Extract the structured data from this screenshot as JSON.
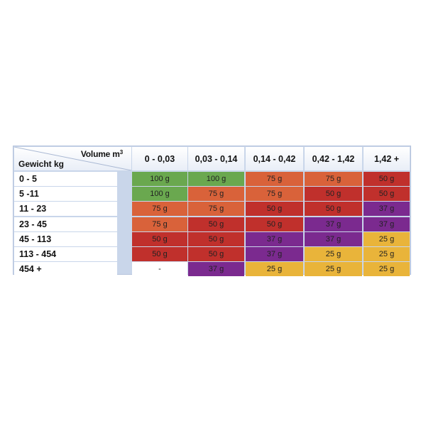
{
  "chart_data": {
    "type": "table",
    "corner": {
      "col_label": "Volume m",
      "col_label_sup": "3",
      "row_label": "Gewicht kg"
    },
    "columns": [
      "0 - 0,03",
      "0,03 - 0,14",
      "0,14 - 0,42",
      "0,42 - 1,42",
      "1,42 +"
    ],
    "rows": [
      "0 - 5",
      "5 -11",
      "11 - 23",
      "23 - 45",
      "45 - 113",
      "113 - 454",
      "454 +"
    ],
    "values": [
      [
        "100 g",
        "100 g",
        "75 g",
        "75 g",
        "50 g"
      ],
      [
        "100 g",
        "75 g",
        "75 g",
        "50 g",
        "50 g"
      ],
      [
        "75 g",
        "75 g",
        "50 g",
        "50 g",
        "37 g"
      ],
      [
        "75 g",
        "50 g",
        "50 g",
        "37 g",
        "37 g"
      ],
      [
        "50 g",
        "50 g",
        "37 g",
        "37 g",
        "25 g"
      ],
      [
        "50 g",
        "50 g",
        "37 g",
        "25 g",
        "25 g"
      ],
      [
        "-",
        "37 g",
        "25 g",
        "25 g",
        "25 g"
      ]
    ],
    "colors": {
      "100 g": "#6aa84f",
      "75 g": "#d9623a",
      "50 g": "#c0302c",
      "37 g": "#7b2a8f",
      "25 g": "#e9b43a",
      "-": "#ffffff"
    }
  }
}
